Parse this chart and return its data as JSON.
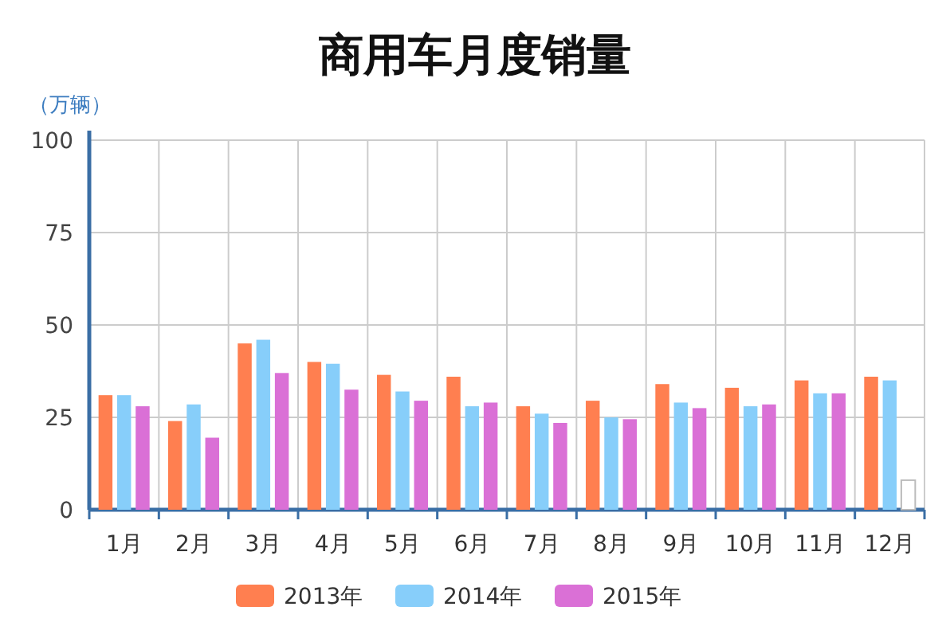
{
  "chart_data": {
    "type": "bar",
    "title": "商用车月度销量",
    "ylabel": "（万辆）",
    "categories": [
      "1月",
      "2月",
      "3月",
      "4月",
      "5月",
      "6月",
      "7月",
      "8月",
      "9月",
      "10月",
      "11月",
      "12月"
    ],
    "series": [
      {
        "name": "2013年",
        "color": "#ff7f50",
        "values": [
          31,
          24,
          45,
          40,
          36.5,
          36,
          28,
          29.5,
          34,
          33,
          35,
          36
        ]
      },
      {
        "name": "2014年",
        "color": "#87cefa",
        "values": [
          31,
          28.5,
          46,
          39.5,
          32,
          28,
          26,
          25,
          29,
          28,
          31.5,
          35
        ]
      },
      {
        "name": "2015年",
        "color": "#da70d6",
        "colors": [
          "#da70d6",
          "#da70d6",
          "#da70d6",
          "#da70d6",
          "#da70d6",
          "#da70d6",
          "#da70d6",
          "#da70d6",
          "#da70d6",
          "#da70d6",
          "#da70d6",
          "#ffffff"
        ],
        "values": [
          28,
          19.5,
          37,
          32.5,
          29.5,
          29,
          23.5,
          24.5,
          27.5,
          28.5,
          31.5,
          8
        ]
      }
    ],
    "ylim": [
      0,
      100
    ],
    "yticks": [
      0,
      25,
      50,
      75,
      100
    ],
    "grid": true,
    "legend": "bottom"
  }
}
